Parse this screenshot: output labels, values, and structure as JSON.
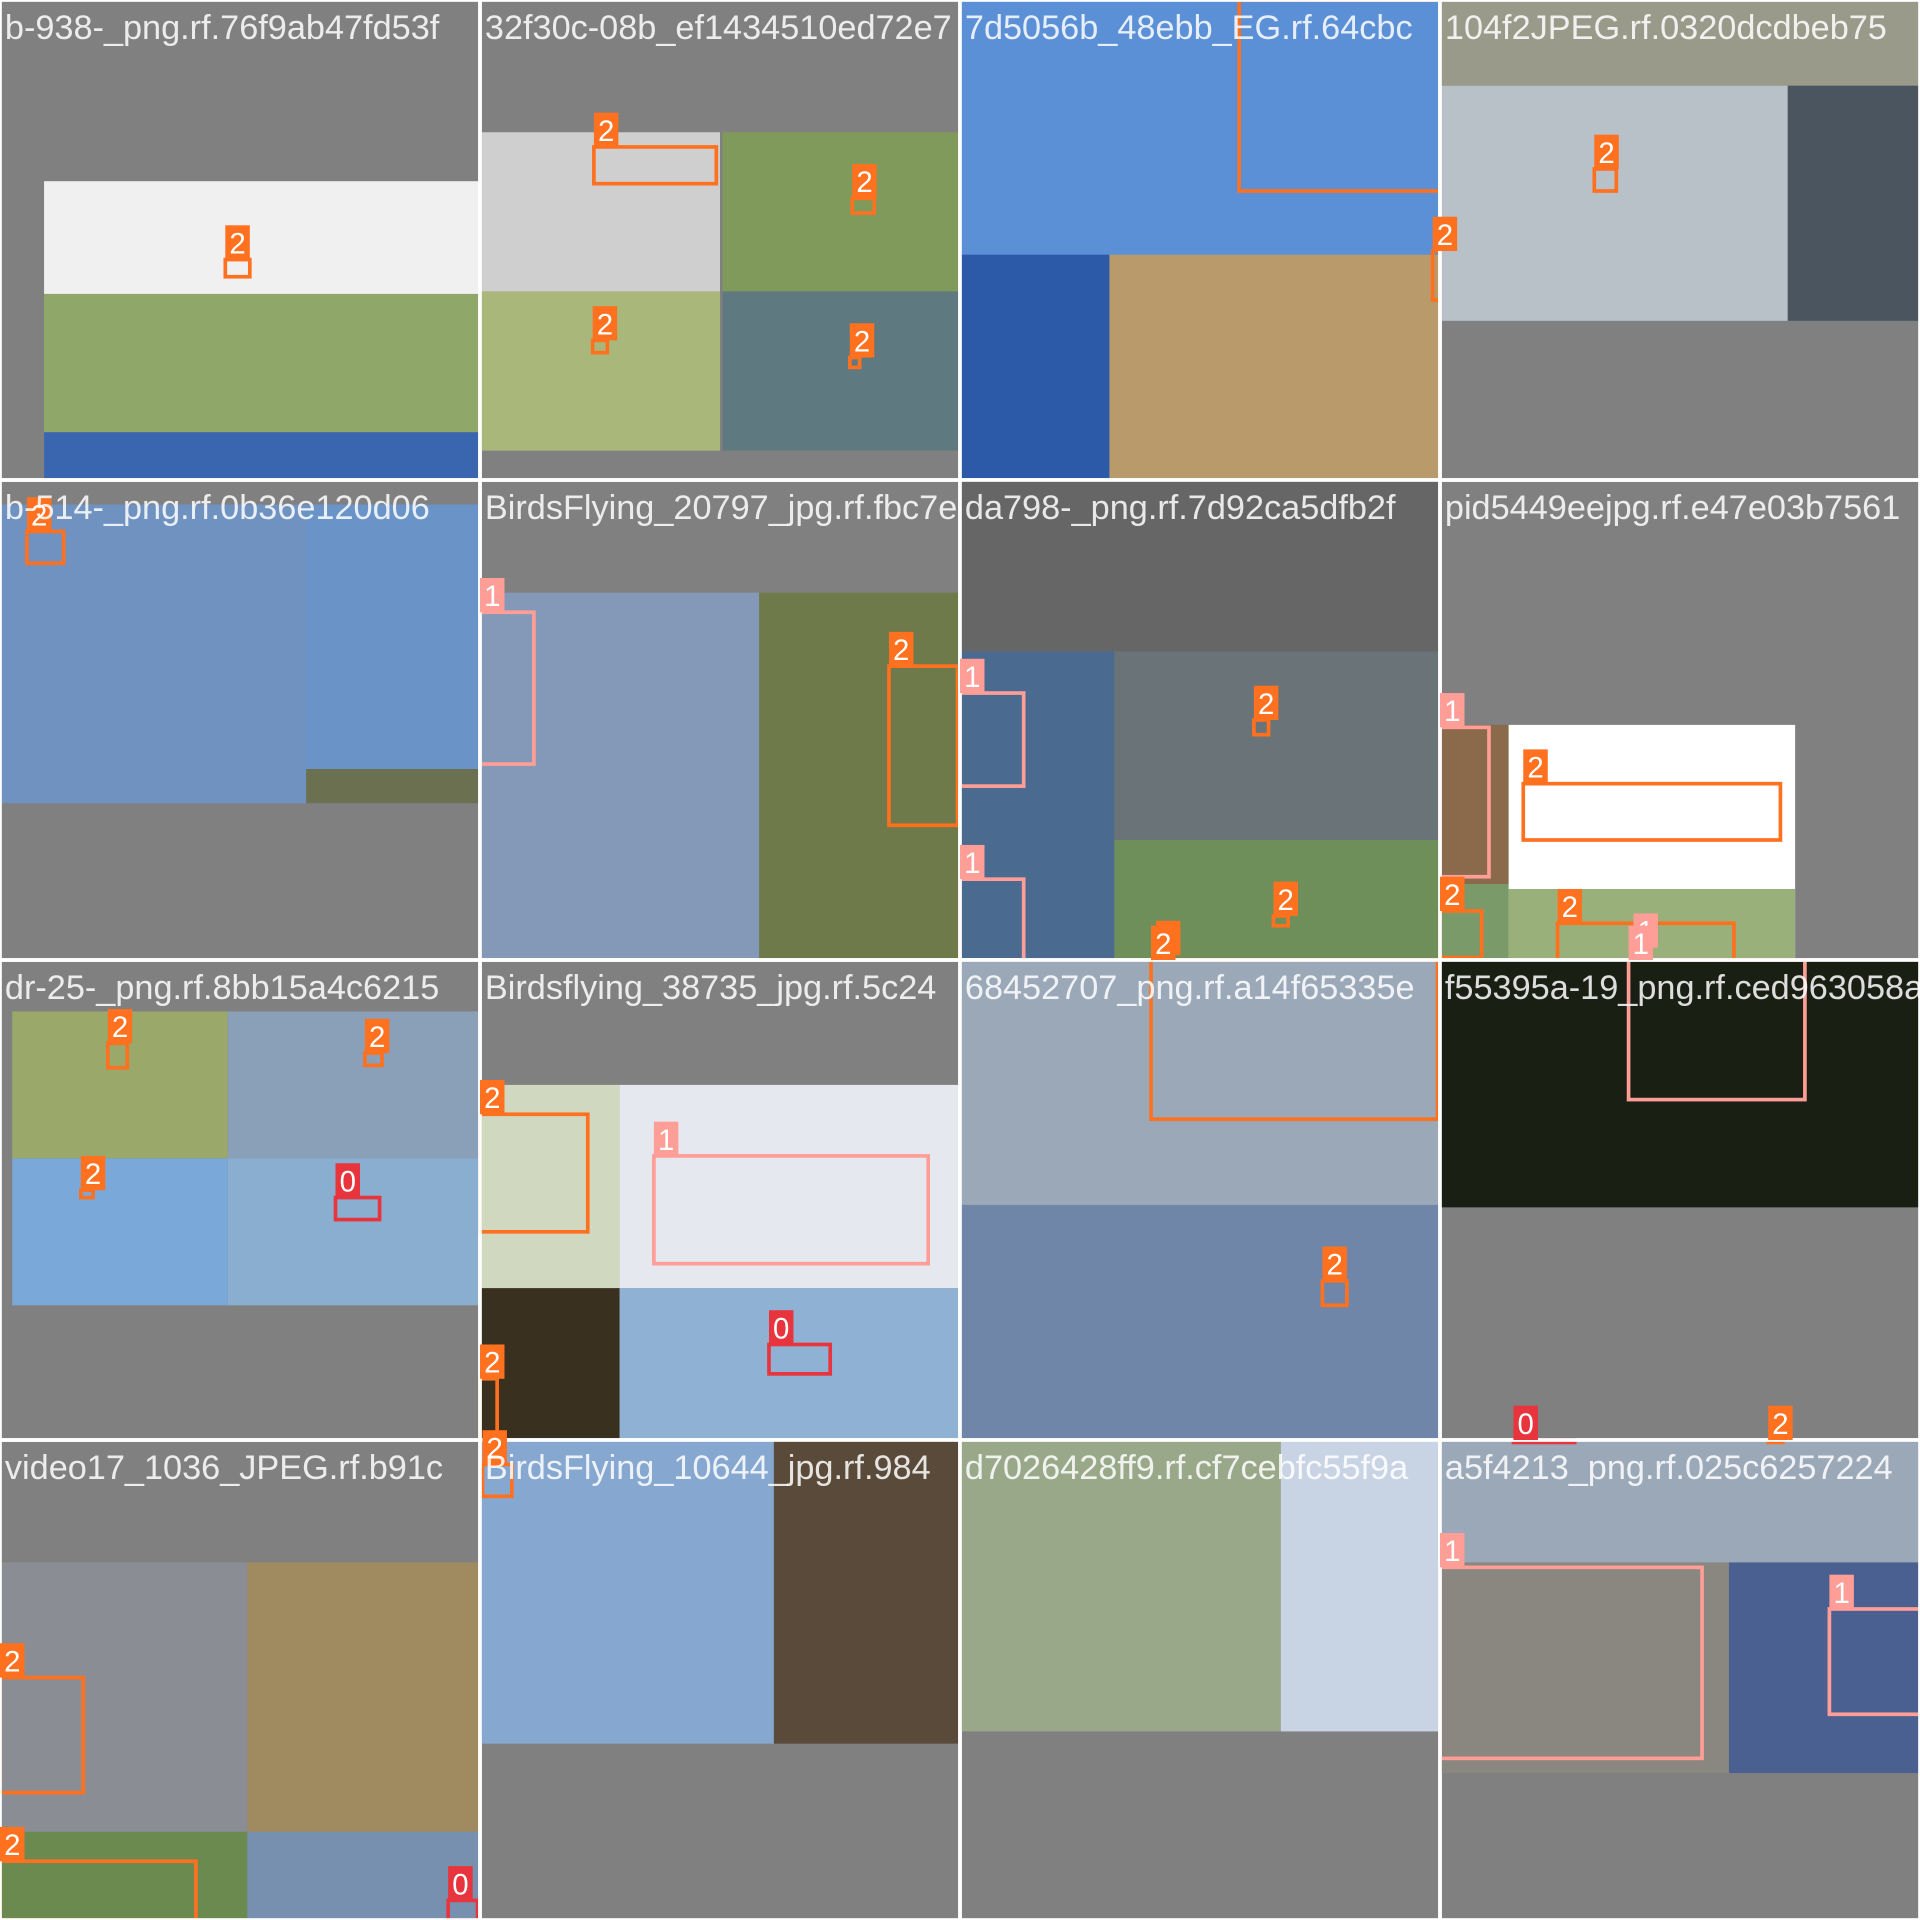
{
  "tiles": [
    {
      "filename": "b-938-_png.rf.76f9ab47fd53f",
      "boxes": [
        "2"
      ]
    },
    {
      "filename": "32f30c-08b_ef1434510ed72e7",
      "boxes": [
        "2",
        "2",
        "2",
        "2"
      ]
    },
    {
      "filename": "7d5056b_48ebb_EG.rf.64cbc",
      "boxes": [
        "2",
        "2"
      ]
    },
    {
      "filename": "104f2JPEG.rf.0320dcdbeb75",
      "boxes": [
        "2"
      ]
    },
    {
      "filename": "b-514-_png.rf.0b36e120d06",
      "boxes": [
        "2"
      ]
    },
    {
      "filename": "BirdsFlying_20797_jpg.rf.fbc7e",
      "boxes": [
        "1",
        "2"
      ]
    },
    {
      "filename": "da798-_png.rf.7d92ca5dfb2f",
      "boxes": [
        "1",
        "1",
        "2",
        "2",
        "2"
      ]
    },
    {
      "filename": "pid5449eejpg.rf.e47e03b7561",
      "boxes": [
        "1",
        "2",
        "2",
        "2",
        "1"
      ]
    },
    {
      "filename": "dr-25-_png.rf.8bb15a4c6215",
      "boxes": [
        "2",
        "2",
        "2",
        "0"
      ]
    },
    {
      "filename": "Birdsflying_38735_jpg.rf.5c24",
      "boxes": [
        "2",
        "1",
        "0",
        "2"
      ]
    },
    {
      "filename": "68452707_png.rf.a14f65335e",
      "boxes": [
        "2",
        "2"
      ]
    },
    {
      "filename": "f55395a-19_png.rf.ced963058a3",
      "boxes": [
        "1"
      ]
    },
    {
      "filename": "video17_1036_JPEG.rf.b91c",
      "boxes": [
        "2",
        "2",
        "0"
      ]
    },
    {
      "filename": "BirdsFlying_10644_jpg.rf.984",
      "boxes": [
        "2"
      ]
    },
    {
      "filename": "d7026428ff9.rf.cf7cebfc55f9a",
      "boxes": []
    },
    {
      "filename": "a5f4213_png.rf.025c6257224",
      "boxes": [
        "1",
        "1",
        "0",
        "2"
      ]
    }
  ]
}
